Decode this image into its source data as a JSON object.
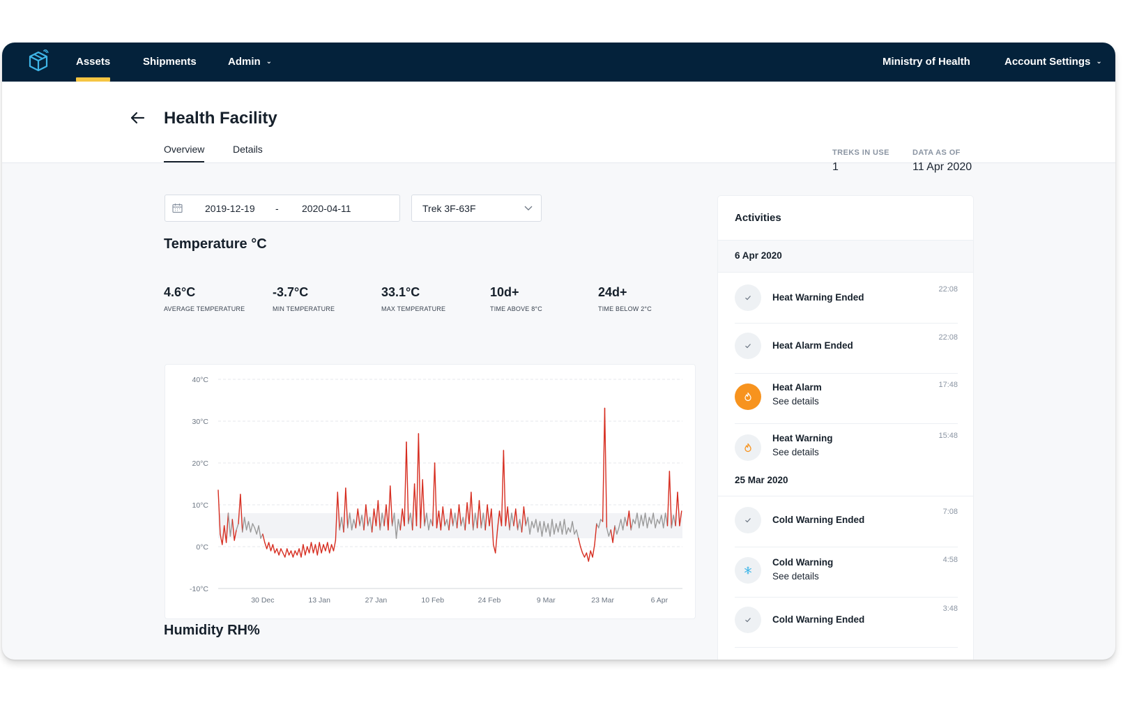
{
  "nav": {
    "items": [
      {
        "label": "Assets",
        "active": true
      },
      {
        "label": "Shipments"
      },
      {
        "label": "Admin"
      }
    ],
    "org_label": "Ministry of Health",
    "account_label": "Account Settings"
  },
  "header": {
    "title": "Health Facility",
    "tabs": [
      {
        "label": "Overview",
        "active": true
      },
      {
        "label": "Details"
      }
    ],
    "treks_label": "TREKS IN USE",
    "treks_value": "1",
    "data_as_of_label": "DATA AS OF",
    "data_as_of_value": "11 Apr 2020"
  },
  "filters": {
    "date_start": "2019-12-19",
    "date_separator": "-",
    "date_end": "2020-04-11",
    "trek": "Trek 3F-63F"
  },
  "temperature": {
    "title": "Temperature °C",
    "stats": [
      {
        "value": "4.6°C",
        "label": "AVERAGE TEMPERATURE"
      },
      {
        "value": "-3.7°C",
        "label": "MIN TEMPERATURE"
      },
      {
        "value": "33.1°C",
        "label": "MAX TEMPERATURE"
      },
      {
        "value": "10d+",
        "label": "TIME ABOVE 8°C"
      },
      {
        "value": "24d+",
        "label": "TIME BELOW 2°C"
      }
    ]
  },
  "humidity": {
    "title": "Humidity RH%"
  },
  "colors": {
    "navy": "#04223b",
    "accent_yellow": "#f5c542",
    "alarm_orange": "#f7931e",
    "line_red": "#d62c1f",
    "line_grey": "#9a9a9a",
    "cold_blue": "#3fb6e8"
  },
  "chart_data": {
    "type": "line",
    "ylim": [
      -10,
      40
    ],
    "y_ticks": [
      {
        "v": 40,
        "label": "40°C"
      },
      {
        "v": 30,
        "label": "30°C"
      },
      {
        "v": 20,
        "label": "20°C"
      },
      {
        "v": 10,
        "label": "10°C"
      },
      {
        "v": 0,
        "label": "0°C"
      },
      {
        "v": -10,
        "label": "-10°C"
      }
    ],
    "x_domain": [
      "2019-12-19",
      "2020-04-11"
    ],
    "x_ticks": [
      {
        "date": "2019-12-30",
        "label": "30 Dec"
      },
      {
        "date": "2020-01-13",
        "label": "13 Jan"
      },
      {
        "date": "2020-01-27",
        "label": "27 Jan"
      },
      {
        "date": "2020-02-10",
        "label": "10 Feb"
      },
      {
        "date": "2020-02-24",
        "label": "24 Feb"
      },
      {
        "date": "2020-03-09",
        "label": "9 Mar"
      },
      {
        "date": "2020-03-23",
        "label": "23 Mar"
      },
      {
        "date": "2020-04-06",
        "label": "6 Apr"
      }
    ],
    "safe_band": [
      2,
      8
    ],
    "safe_band_color": "#f2f3f6",
    "points": [
      [
        "2019-12-19",
        13.5
      ],
      [
        "2019-12-19",
        3.0
      ],
      [
        "2019-12-20",
        0.5
      ],
      [
        "2019-12-20",
        5.0
      ],
      [
        "2019-12-21",
        1.0
      ],
      [
        "2019-12-21",
        8.0
      ],
      [
        "2019-12-22",
        2.5
      ],
      [
        "2019-12-22",
        6.5
      ],
      [
        "2019-12-23",
        1.5
      ],
      [
        "2019-12-23",
        4.0
      ],
      [
        "2019-12-24",
        5.5
      ],
      [
        "2019-12-24",
        12.5
      ],
      [
        "2019-12-25",
        3.5
      ],
      [
        "2019-12-25",
        7.0
      ],
      [
        "2019-12-26",
        4.0
      ],
      [
        "2019-12-26",
        6.0
      ],
      [
        "2019-12-27",
        3.5
      ],
      [
        "2019-12-27",
        5.5
      ],
      [
        "2019-12-28",
        4.5
      ],
      [
        "2019-12-28",
        3.0
      ],
      [
        "2019-12-29",
        5.0
      ],
      [
        "2019-12-29",
        2.0
      ],
      [
        "2019-12-30",
        3.0
      ],
      [
        "2019-12-30",
        1.0
      ],
      [
        "2019-12-31",
        -0.5
      ],
      [
        "2019-12-31",
        1.0
      ],
      [
        "2020-01-01",
        -1.0
      ],
      [
        "2020-01-01",
        0.5
      ],
      [
        "2020-01-02",
        -1.5
      ],
      [
        "2020-01-02",
        -0.5
      ],
      [
        "2020-01-03",
        -2.0
      ],
      [
        "2020-01-03",
        -0.5
      ],
      [
        "2020-01-04",
        -1.5
      ],
      [
        "2020-01-04",
        -2.5
      ],
      [
        "2020-01-05",
        -0.5
      ],
      [
        "2020-01-05",
        -2.0
      ],
      [
        "2020-01-06",
        -1.0
      ],
      [
        "2020-01-06",
        -2.5
      ],
      [
        "2020-01-07",
        -1.0
      ],
      [
        "2020-01-07",
        -2.0
      ],
      [
        "2020-01-08",
        -0.5
      ],
      [
        "2020-01-08",
        -2.5
      ],
      [
        "2020-01-09",
        0.5
      ],
      [
        "2020-01-09",
        -2.0
      ],
      [
        "2020-01-10",
        0.0
      ],
      [
        "2020-01-10",
        -1.5
      ],
      [
        "2020-01-11",
        1.0
      ],
      [
        "2020-01-11",
        -1.5
      ],
      [
        "2020-01-12",
        0.5
      ],
      [
        "2020-01-12",
        -2.0
      ],
      [
        "2020-01-13",
        1.0
      ],
      [
        "2020-01-13",
        -1.5
      ],
      [
        "2020-01-14",
        0.5
      ],
      [
        "2020-01-14",
        -1.0
      ],
      [
        "2020-01-15",
        1.0
      ],
      [
        "2020-01-15",
        -1.5
      ],
      [
        "2020-01-16",
        0.5
      ],
      [
        "2020-01-16",
        -1.0
      ],
      [
        "2020-01-17",
        1.5
      ],
      [
        "2020-01-17",
        13.0
      ],
      [
        "2020-01-18",
        4.0
      ],
      [
        "2020-01-18",
        7.0
      ],
      [
        "2020-01-19",
        3.5
      ],
      [
        "2020-01-19",
        14.0
      ],
      [
        "2020-01-20",
        4.5
      ],
      [
        "2020-01-20",
        8.0
      ],
      [
        "2020-01-21",
        4.0
      ],
      [
        "2020-01-21",
        6.5
      ],
      [
        "2020-01-22",
        4.5
      ],
      [
        "2020-01-22",
        9.0
      ],
      [
        "2020-01-23",
        5.0
      ],
      [
        "2020-01-23",
        7.5
      ],
      [
        "2020-01-24",
        4.0
      ],
      [
        "2020-01-24",
        10.0
      ],
      [
        "2020-01-25",
        5.0
      ],
      [
        "2020-01-25",
        7.0
      ],
      [
        "2020-01-26",
        3.5
      ],
      [
        "2020-01-26",
        9.0
      ],
      [
        "2020-01-27",
        5.0
      ],
      [
        "2020-01-27",
        11.0
      ],
      [
        "2020-01-28",
        4.0
      ],
      [
        "2020-01-28",
        8.0
      ],
      [
        "2020-01-29",
        5.0
      ],
      [
        "2020-01-29",
        10.0
      ],
      [
        "2020-01-30",
        4.0
      ],
      [
        "2020-01-30",
        14.5
      ],
      [
        "2020-01-31",
        5.0
      ],
      [
        "2020-01-31",
        8.0
      ],
      [
        "2020-02-01",
        2.0
      ],
      [
        "2020-02-01",
        6.5
      ],
      [
        "2020-02-02",
        4.0
      ],
      [
        "2020-02-02",
        9.0
      ],
      [
        "2020-02-03",
        5.0
      ],
      [
        "2020-02-03",
        25.0
      ],
      [
        "2020-02-04",
        5.5
      ],
      [
        "2020-02-04",
        8.0
      ],
      [
        "2020-02-05",
        4.0
      ],
      [
        "2020-02-05",
        15.0
      ],
      [
        "2020-02-06",
        5.0
      ],
      [
        "2020-02-06",
        27.0
      ],
      [
        "2020-02-07",
        4.5
      ],
      [
        "2020-02-07",
        16.0
      ],
      [
        "2020-02-08",
        5.0
      ],
      [
        "2020-02-08",
        8.0
      ],
      [
        "2020-02-09",
        4.0
      ],
      [
        "2020-02-09",
        6.5
      ],
      [
        "2020-02-10",
        5.0
      ],
      [
        "2020-02-10",
        20.0
      ],
      [
        "2020-02-11",
        4.5
      ],
      [
        "2020-02-11",
        8.5
      ],
      [
        "2020-02-12",
        4.0
      ],
      [
        "2020-02-12",
        9.5
      ],
      [
        "2020-02-13",
        5.0
      ],
      [
        "2020-02-13",
        6.5
      ],
      [
        "2020-02-14",
        4.0
      ],
      [
        "2020-02-14",
        9.0
      ],
      [
        "2020-02-15",
        5.0
      ],
      [
        "2020-02-15",
        8.0
      ],
      [
        "2020-02-16",
        4.5
      ],
      [
        "2020-02-16",
        10.0
      ],
      [
        "2020-02-17",
        5.0
      ],
      [
        "2020-02-17",
        7.0
      ],
      [
        "2020-02-18",
        4.0
      ],
      [
        "2020-02-18",
        10.5
      ],
      [
        "2020-02-19",
        5.5
      ],
      [
        "2020-02-19",
        13.0
      ],
      [
        "2020-02-20",
        4.0
      ],
      [
        "2020-02-20",
        8.0
      ],
      [
        "2020-02-21",
        4.5
      ],
      [
        "2020-02-21",
        11.0
      ],
      [
        "2020-02-22",
        4.5
      ],
      [
        "2020-02-22",
        8.0
      ],
      [
        "2020-02-23",
        4.0
      ],
      [
        "2020-02-23",
        10.0
      ],
      [
        "2020-02-24",
        5.0
      ],
      [
        "2020-02-24",
        9.0
      ],
      [
        "2020-02-25",
        0.5
      ],
      [
        "2020-02-25",
        -1.5
      ],
      [
        "2020-02-26",
        4.0
      ],
      [
        "2020-02-26",
        8.5
      ],
      [
        "2020-02-27",
        5.0
      ],
      [
        "2020-02-27",
        23.0
      ],
      [
        "2020-02-28",
        5.0
      ],
      [
        "2020-02-28",
        9.5
      ],
      [
        "2020-02-29",
        4.0
      ],
      [
        "2020-02-29",
        8.0
      ],
      [
        "2020-03-01",
        5.0
      ],
      [
        "2020-03-01",
        9.0
      ],
      [
        "2020-03-02",
        4.0
      ],
      [
        "2020-03-02",
        6.5
      ],
      [
        "2020-03-03",
        3.5
      ],
      [
        "2020-03-03",
        9.5
      ],
      [
        "2020-03-04",
        5.0
      ],
      [
        "2020-03-04",
        7.0
      ],
      [
        "2020-03-05",
        3.0
      ],
      [
        "2020-03-05",
        6.0
      ],
      [
        "2020-03-06",
        4.5
      ],
      [
        "2020-03-06",
        6.5
      ],
      [
        "2020-03-07",
        3.5
      ],
      [
        "2020-03-07",
        6.0
      ],
      [
        "2020-03-08",
        2.5
      ],
      [
        "2020-03-08",
        6.0
      ],
      [
        "2020-03-09",
        3.5
      ],
      [
        "2020-03-09",
        5.5
      ],
      [
        "2020-03-10",
        2.5
      ],
      [
        "2020-03-10",
        6.5
      ],
      [
        "2020-03-11",
        3.0
      ],
      [
        "2020-03-11",
        5.5
      ],
      [
        "2020-03-12",
        3.5
      ],
      [
        "2020-03-12",
        6.0
      ],
      [
        "2020-03-13",
        3.0
      ],
      [
        "2020-03-13",
        6.5
      ],
      [
        "2020-03-14",
        3.0
      ],
      [
        "2020-03-14",
        4.5
      ],
      [
        "2020-03-15",
        3.5
      ],
      [
        "2020-03-15",
        6.0
      ],
      [
        "2020-03-16",
        3.0
      ],
      [
        "2020-03-16",
        4.0
      ],
      [
        "2020-03-17",
        2.0
      ],
      [
        "2020-03-17",
        0.0
      ],
      [
        "2020-03-18",
        -1.5
      ],
      [
        "2020-03-18",
        -2.5
      ],
      [
        "2020-03-19",
        -1.5
      ],
      [
        "2020-03-19",
        -3.5
      ],
      [
        "2020-03-20",
        -1.0
      ],
      [
        "2020-03-20",
        -2.5
      ],
      [
        "2020-03-21",
        0.5
      ],
      [
        "2020-03-21",
        5.5
      ],
      [
        "2020-03-22",
        4.5
      ],
      [
        "2020-03-22",
        6.5
      ],
      [
        "2020-03-23",
        6.0
      ],
      [
        "2020-03-23",
        33.1
      ],
      [
        "2020-03-24",
        4.5
      ],
      [
        "2020-03-24",
        2.5
      ],
      [
        "2020-03-25",
        4.0
      ],
      [
        "2020-03-25",
        1.0
      ],
      [
        "2020-03-26",
        5.0
      ],
      [
        "2020-03-26",
        3.0
      ],
      [
        "2020-03-27",
        4.5
      ],
      [
        "2020-03-27",
        6.5
      ],
      [
        "2020-03-28",
        4.0
      ],
      [
        "2020-03-28",
        7.0
      ],
      [
        "2020-03-29",
        5.0
      ],
      [
        "2020-03-29",
        8.5
      ],
      [
        "2020-03-30",
        4.0
      ],
      [
        "2020-03-30",
        6.5
      ],
      [
        "2020-03-31",
        5.5
      ],
      [
        "2020-03-31",
        8.0
      ],
      [
        "2020-04-01",
        4.5
      ],
      [
        "2020-04-01",
        7.5
      ],
      [
        "2020-04-02",
        5.0
      ],
      [
        "2020-04-02",
        8.0
      ],
      [
        "2020-04-03",
        4.5
      ],
      [
        "2020-04-03",
        7.0
      ],
      [
        "2020-04-04",
        5.5
      ],
      [
        "2020-04-04",
        8.0
      ],
      [
        "2020-04-05",
        4.5
      ],
      [
        "2020-04-05",
        6.5
      ],
      [
        "2020-04-06",
        5.5
      ],
      [
        "2020-04-06",
        7.5
      ],
      [
        "2020-04-07",
        4.5
      ],
      [
        "2020-04-07",
        8.0
      ],
      [
        "2020-04-08",
        5.0
      ],
      [
        "2020-04-08",
        18.0
      ],
      [
        "2020-04-09",
        4.5
      ],
      [
        "2020-04-09",
        7.5
      ],
      [
        "2020-04-10",
        5.0
      ],
      [
        "2020-04-10",
        13.0
      ],
      [
        "2020-04-11",
        5.0
      ],
      [
        "2020-04-11",
        8.5
      ]
    ]
  },
  "activities": {
    "title": "Activities",
    "groups": [
      {
        "date": "6 Apr 2020",
        "items": [
          {
            "title": "Heat Warning Ended",
            "time": "22:08",
            "icon": "check-icon"
          },
          {
            "title": "Heat Alarm Ended",
            "time": "22:08",
            "icon": "check-icon"
          },
          {
            "title": "Heat Alarm",
            "subtitle": "See details",
            "time": "17:48",
            "icon": "flame-icon"
          },
          {
            "title": "Heat Warning",
            "subtitle": "See details",
            "time": "15:48",
            "icon": "flame-icon"
          }
        ]
      },
      {
        "date": "25 Mar 2020",
        "items": [
          {
            "title": "Cold Warning Ended",
            "time": "7:08",
            "icon": "check-icon"
          },
          {
            "title": "Cold Warning",
            "subtitle": "See details",
            "time": "4:58",
            "icon": "snowflake-icon"
          },
          {
            "title": "Cold Warning Ended",
            "time": "3:48",
            "icon": "check-icon"
          }
        ]
      }
    ]
  }
}
